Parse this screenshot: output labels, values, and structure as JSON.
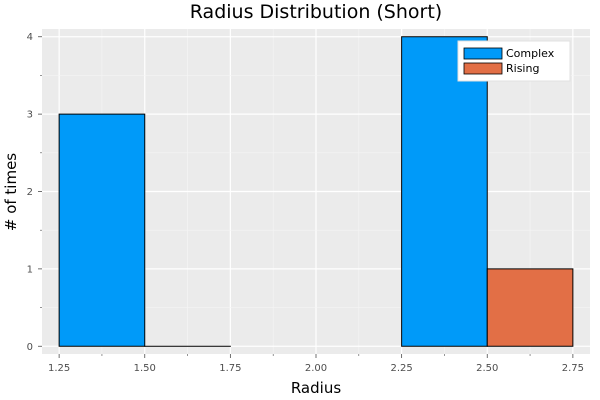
{
  "chart_data": {
    "type": "bar",
    "title": "Radius Distribution (Short)",
    "xlabel": "Radius",
    "ylabel": "# of times",
    "xlim": [
      1.2,
      2.8
    ],
    "ylim": [
      -0.1,
      4.1
    ],
    "x_ticks": [
      "1.25",
      "1.50",
      "1.75",
      "2.00",
      "2.25",
      "2.50",
      "2.75"
    ],
    "y_ticks": [
      "0",
      "1",
      "2",
      "3",
      "4"
    ],
    "grid": true,
    "legend_position": "top-right",
    "background": "#ebebeb",
    "series": [
      {
        "name": "Complex",
        "color": "#009af9",
        "bins": [
          {
            "start": 1.25,
            "end": 1.5,
            "count": 3
          },
          {
            "start": 2.25,
            "end": 2.5,
            "count": 4
          }
        ]
      },
      {
        "name": "Rising",
        "color": "#e26f46",
        "bins": [
          {
            "start": 1.5,
            "end": 1.75,
            "count": 0
          },
          {
            "start": 2.5,
            "end": 2.75,
            "count": 1
          }
        ]
      }
    ]
  }
}
